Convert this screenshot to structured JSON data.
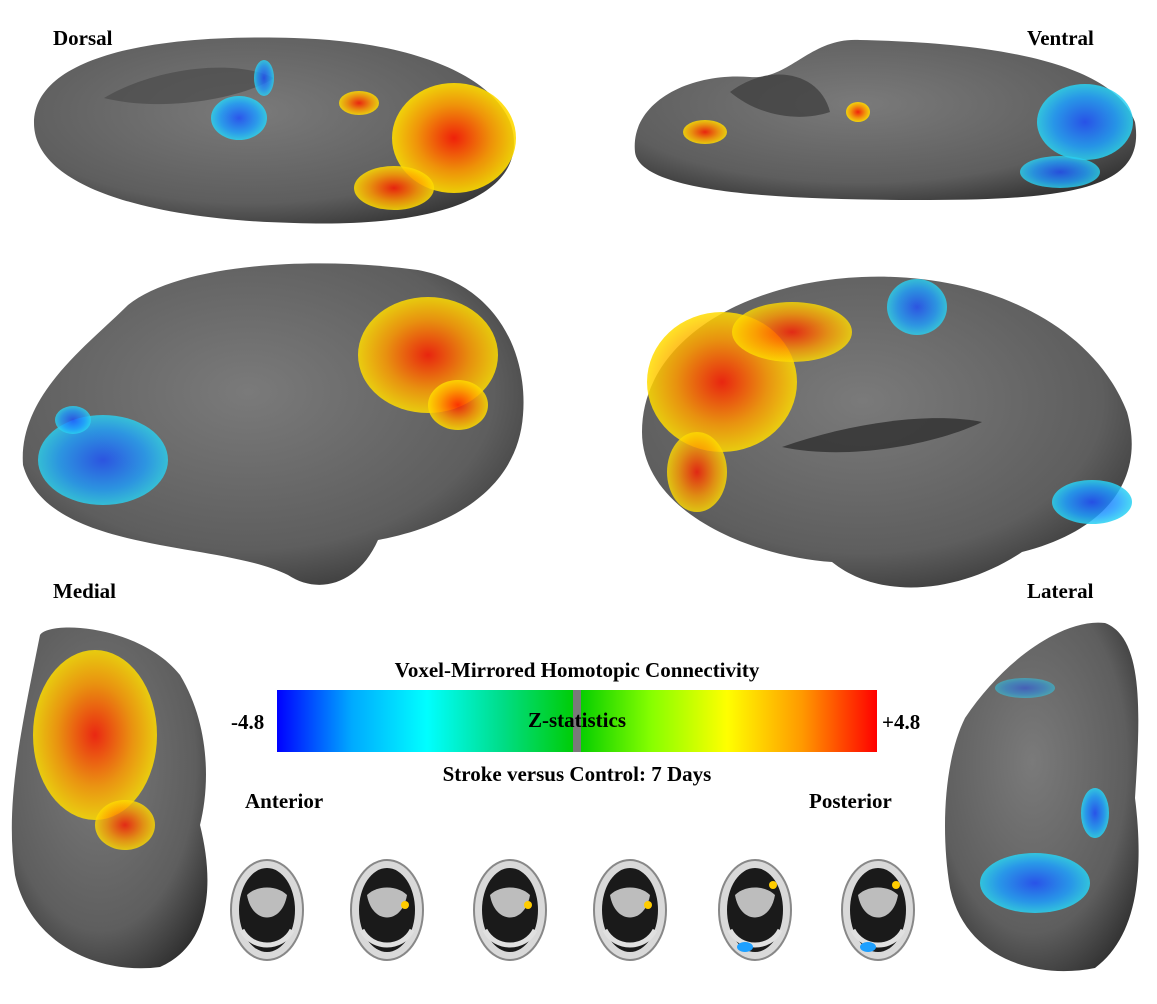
{
  "views": {
    "dorsal": "Dorsal",
    "ventral": "Ventral",
    "medial": "Medial",
    "lateral": "Lateral",
    "anterior": "Anterior",
    "posterior": "Posterior"
  },
  "colorbar": {
    "title": "Voxel-Mirrored Homotopic Connectivity",
    "center_label": "Z-statistics",
    "subtitle": "Stroke versus Control: 7 Days",
    "min_label": "-4.8",
    "max_label": "+4.8",
    "colors": [
      "#0000ff",
      "#00aaff",
      "#00ffff",
      "#00dd88",
      "#00cc00",
      "#88ff00",
      "#ffff00",
      "#ff9900",
      "#ff0000"
    ]
  },
  "colors": {
    "cortex": "#6f6f6f",
    "cortex_dark": "#3a3a3a",
    "positive": "#ff3300",
    "negative": "#1ea0ff"
  },
  "axial_slices_count": 6
}
